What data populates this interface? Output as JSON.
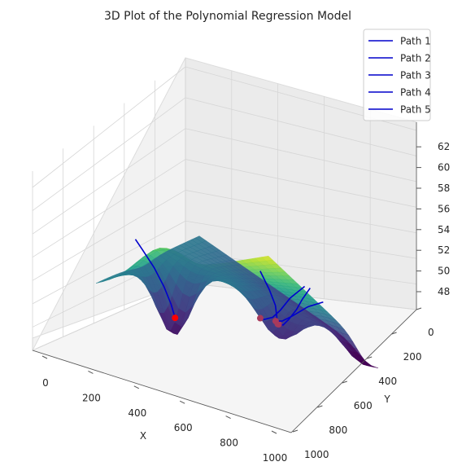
{
  "chart_data": {
    "type": "surface3d",
    "title": "3D Plot of the Polynomial Regression Model",
    "xlabel": "X",
    "ylabel": "Y",
    "zlabel": "",
    "xlim": [
      0,
      1000
    ],
    "ylim": [
      0,
      1000
    ],
    "zlim": [
      47,
      63
    ],
    "x_ticks": [
      0,
      200,
      400,
      600,
      800,
      1000
    ],
    "y_ticks": [
      0,
      200,
      400,
      600,
      800,
      1000
    ],
    "z_ticks": [
      48,
      50,
      52,
      54,
      56,
      58,
      60,
      62
    ],
    "grid": true,
    "colormap": "viridis",
    "legend_position": "top-right",
    "surface_corners": {
      "x0_y0": 53.0,
      "x1000_y0": 63.0,
      "x0_y1000": 52.5,
      "x1000_y1000": 45.0
    },
    "series": [
      {
        "name": "Path 1",
        "color": "#0000cc",
        "points": [
          [
            120,
            180,
            57.8
          ],
          [
            130,
            230,
            56.4
          ],
          [
            150,
            310,
            54.0
          ],
          [
            165,
            380,
            51.5
          ],
          [
            175,
            430,
            49.3
          ],
          [
            180,
            460,
            47.6
          ]
        ],
        "end_marker_color": "#ff0000"
      },
      {
        "name": "Path 2",
        "color": "#0000cc",
        "points": [
          [
            870,
            130,
            59.6
          ],
          [
            860,
            230,
            56.8
          ],
          [
            820,
            350,
            54.0
          ],
          [
            760,
            460,
            51.6
          ],
          [
            700,
            560,
            50.0
          ],
          [
            655,
            640,
            49.0
          ]
        ],
        "end_marker_color": "#a83a5c"
      },
      {
        "name": "Path 3",
        "color": "#0000cc",
        "points": [
          [
            1000,
            380,
            57.0
          ],
          [
            930,
            420,
            55.0
          ],
          [
            860,
            480,
            53.0
          ],
          [
            780,
            540,
            51.0
          ],
          [
            710,
            600,
            49.5
          ],
          [
            660,
            640,
            49.0
          ]
        ],
        "end_marker_color": "#a83a5c"
      },
      {
        "name": "Path 4",
        "color": "#0000cc",
        "points": [
          [
            900,
            660,
            53.0
          ],
          [
            820,
            650,
            52.0
          ],
          [
            740,
            640,
            50.5
          ],
          [
            680,
            640,
            49.5
          ],
          [
            640,
            645,
            49.2
          ]
        ],
        "end_marker_color": "#a83a5c"
      },
      {
        "name": "Path 5",
        "color": "#0000cc",
        "points": [
          [
            1000,
            330,
            57.5
          ],
          [
            880,
            390,
            55.0
          ],
          [
            780,
            460,
            52.5
          ],
          [
            700,
            520,
            50.8
          ],
          [
            620,
            570,
            49.7
          ],
          [
            580,
            600,
            49.4
          ]
        ],
        "end_marker_color": "#a83a5c"
      }
    ]
  }
}
